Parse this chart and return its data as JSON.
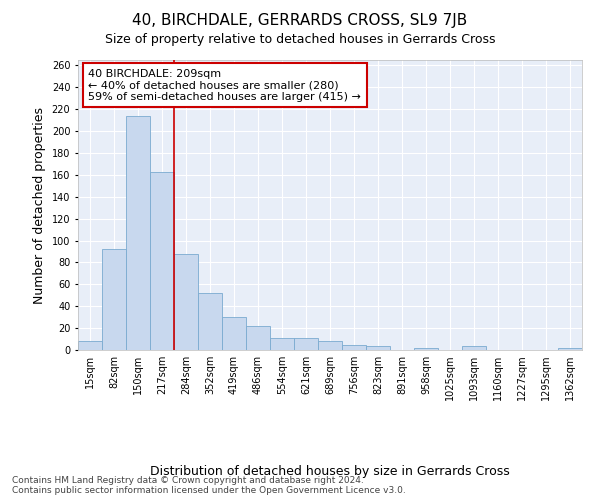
{
  "title": "40, BIRCHDALE, GERRARDS CROSS, SL9 7JB",
  "subtitle": "Size of property relative to detached houses in Gerrards Cross",
  "xlabel": "Distribution of detached houses by size in Gerrards Cross",
  "ylabel": "Number of detached properties",
  "categories": [
    "15sqm",
    "82sqm",
    "150sqm",
    "217sqm",
    "284sqm",
    "352sqm",
    "419sqm",
    "486sqm",
    "554sqm",
    "621sqm",
    "689sqm",
    "756sqm",
    "823sqm",
    "891sqm",
    "958sqm",
    "1025sqm",
    "1093sqm",
    "1160sqm",
    "1227sqm",
    "1295sqm",
    "1362sqm"
  ],
  "values": [
    8,
    92,
    214,
    163,
    88,
    52,
    30,
    22,
    11,
    11,
    8,
    5,
    4,
    0,
    2,
    0,
    4,
    0,
    0,
    0,
    2
  ],
  "bar_color": "#c8d8ee",
  "bar_edge_color": "#7aaad0",
  "vline_x": 3.5,
  "vline_color": "#cc0000",
  "annotation_text": "40 BIRCHDALE: 209sqm\n← 40% of detached houses are smaller (280)\n59% of semi-detached houses are larger (415) →",
  "annotation_box_color": "#ffffff",
  "annotation_box_edge": "#cc0000",
  "ylim": [
    0,
    265
  ],
  "yticks": [
    0,
    20,
    40,
    60,
    80,
    100,
    120,
    140,
    160,
    180,
    200,
    220,
    240,
    260
  ],
  "footer_text": "Contains HM Land Registry data © Crown copyright and database right 2024.\nContains public sector information licensed under the Open Government Licence v3.0.",
  "bg_color": "#e8eef8",
  "grid_color": "#ffffff",
  "title_fontsize": 11,
  "subtitle_fontsize": 9,
  "ylabel_fontsize": 9,
  "xlabel_fontsize": 9,
  "tick_fontsize": 7,
  "annotation_fontsize": 8,
  "footer_fontsize": 6.5
}
